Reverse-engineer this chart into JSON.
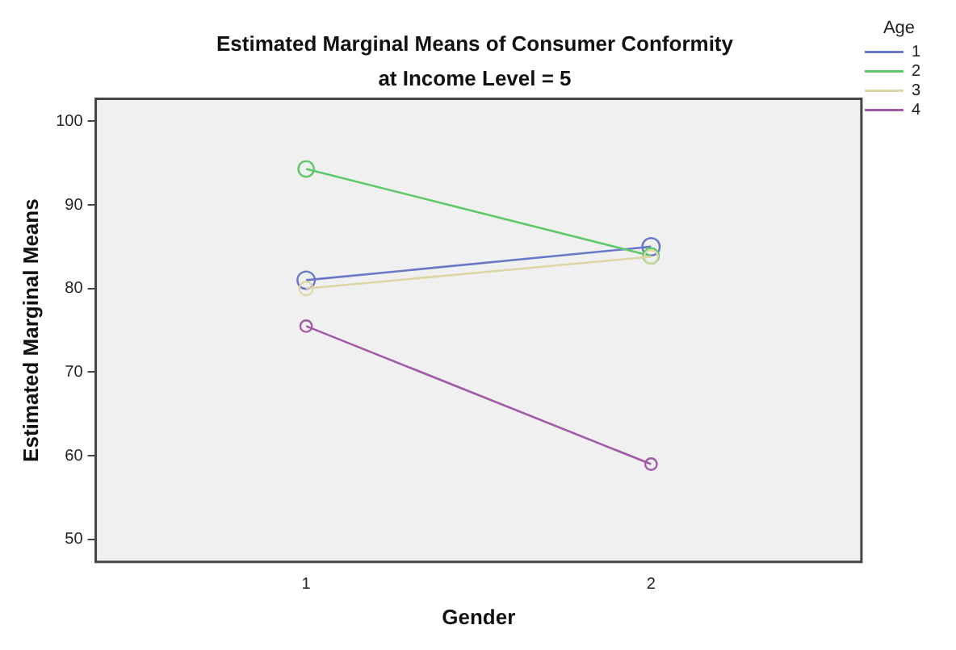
{
  "chart_data": {
    "type": "line",
    "title": "Estimated Marginal Means of Consumer Conformity",
    "subtitle": "at Income Level = 5",
    "xlabel": "Gender",
    "ylabel": "Estimated Marginal Means",
    "legend_title": "Age",
    "x": [
      1,
      2
    ],
    "xlim": [
      0.39,
      2.61
    ],
    "xticks": [
      1,
      2
    ],
    "ylim": [
      47.3,
      102.7
    ],
    "yticks": [
      50,
      60,
      70,
      80,
      90,
      100
    ],
    "series": [
      {
        "name": "1",
        "color": "#6a78c8",
        "values": [
          81.0,
          85.0
        ]
      },
      {
        "name": "2",
        "color": "#5ec86a",
        "values": [
          94.3,
          83.9
        ]
      },
      {
        "name": "3",
        "color": "#dcd7a4",
        "values": [
          80.0,
          83.8
        ]
      },
      {
        "name": "4",
        "color": "#a35aa8",
        "values": [
          75.5,
          59.0
        ]
      }
    ],
    "marker": "circle",
    "line_style": "solid",
    "legend": "top right",
    "grid": false
  }
}
